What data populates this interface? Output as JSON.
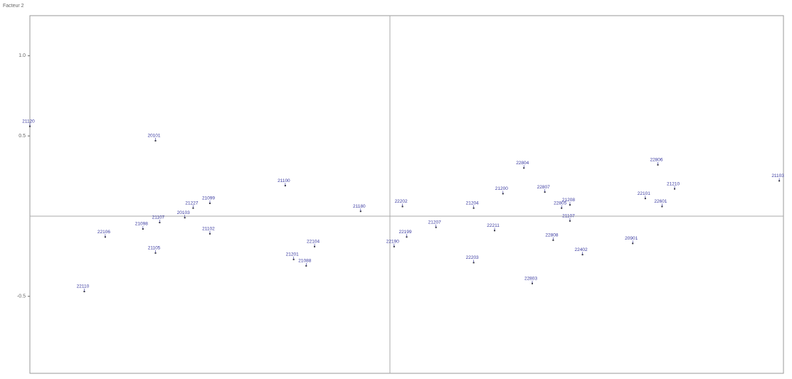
{
  "chart_data": {
    "type": "scatter",
    "y_label": "Facteur 2",
    "x": [
      -0.86,
      -0.56,
      -0.73,
      -0.68,
      -0.56,
      -0.59,
      -0.55,
      -0.49,
      -0.47,
      -0.43,
      -0.43,
      -0.25,
      -0.23,
      -0.2,
      -0.18,
      -0.07,
      0.01,
      0.03,
      0.04,
      0.11,
      0.2,
      0.2,
      0.25,
      0.27,
      0.32,
      0.34,
      0.37,
      0.39,
      0.41,
      0.43,
      0.43,
      0.46,
      0.58,
      0.61,
      0.64,
      0.65,
      0.68,
      0.93
    ],
    "values": [
      0.56,
      0.47,
      -0.47,
      -0.13,
      -0.23,
      -0.08,
      -0.04,
      -0.01,
      0.05,
      0.08,
      -0.11,
      0.19,
      -0.27,
      -0.31,
      -0.19,
      0.03,
      -0.19,
      0.06,
      -0.13,
      -0.07,
      0.05,
      -0.29,
      -0.09,
      0.14,
      0.3,
      -0.42,
      0.15,
      -0.15,
      0.05,
      0.07,
      -0.03,
      -0.24,
      -0.17,
      0.11,
      0.32,
      0.06,
      0.17,
      0.22
    ],
    "labels": [
      "21120",
      "20101",
      "22110",
      "22106",
      "21105",
      "21098",
      "21107",
      "20103",
      "21227",
      "21099",
      "21102",
      "21100",
      "21201",
      "21088",
      "22104",
      "21180",
      "22190",
      "22202",
      "22199",
      "21207",
      "21204",
      "22203",
      "22211",
      "21200",
      "22804",
      "22803",
      "22807",
      "22808",
      "22805",
      "21208",
      "21107",
      "22402",
      "20901",
      "22101",
      "22806",
      "22601",
      "21210",
      "21103"
    ],
    "color": "#3a3aa0",
    "xlim": [
      -0.86,
      0.94
    ],
    "ylim": [
      -0.98,
      1.25
    ],
    "yticks": [
      {
        "value": 1.0,
        "label": "1.0"
      },
      0.5,
      -0.5
    ]
  }
}
